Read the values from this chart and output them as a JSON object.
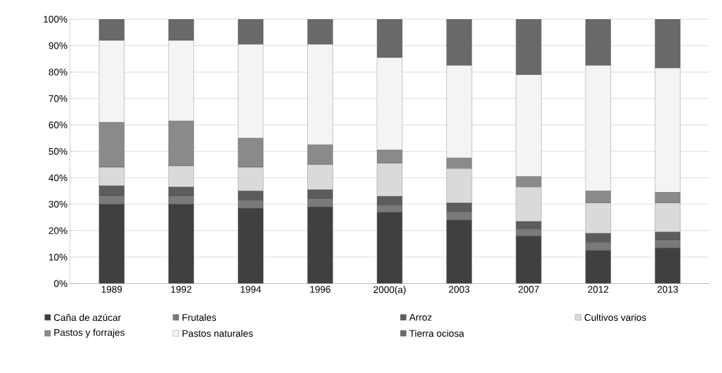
{
  "chart_data": {
    "type": "bar",
    "stacked": true,
    "categories": [
      "1989",
      "1992",
      "1994",
      "1996",
      "2000(a)",
      "2003",
      "2007",
      "2012",
      "2013"
    ],
    "series": [
      {
        "name": "Caña de azúcar",
        "color": "#404040",
        "values": [
          30,
          30,
          28.5,
          29,
          27,
          24,
          18,
          12.5,
          13.5
        ]
      },
      {
        "name": "Frutales",
        "color": "#7a7a7a",
        "values": [
          3,
          3,
          3,
          3,
          2.5,
          3,
          2.5,
          3,
          3
        ]
      },
      {
        "name": "Arroz",
        "color": "#5c5c5c",
        "values": [
          4,
          3.5,
          3.5,
          3.5,
          3.5,
          3.5,
          3,
          3.5,
          3
        ]
      },
      {
        "name": "Cultivos varios",
        "color": "#dadada",
        "values": [
          7,
          8,
          9,
          9.5,
          12.5,
          13,
          13,
          11.5,
          11
        ]
      },
      {
        "name": "Pastos y forrajes",
        "color": "#8a8a8a",
        "values": [
          17,
          17,
          11,
          7.5,
          5,
          4,
          4,
          4.5,
          4
        ]
      },
      {
        "name": "Pastos naturales",
        "color": "#f4f4f4",
        "values": [
          31,
          30.5,
          35.5,
          38,
          35,
          35,
          38.5,
          47.5,
          47
        ]
      },
      {
        "name": "Tierra ociosa",
        "color": "#696969",
        "values": [
          8,
          8,
          9.5,
          9.5,
          14.5,
          17.5,
          21,
          17.5,
          18.5
        ]
      }
    ],
    "ylim": [
      0,
      100
    ],
    "yticks": [
      {
        "value": 0,
        "label": "0%"
      },
      {
        "value": 10,
        "label": "10%"
      },
      {
        "value": 20,
        "label": "20%"
      },
      {
        "value": 30,
        "label": "30%"
      },
      {
        "value": 40,
        "label": "40%"
      },
      {
        "value": 50,
        "label": "50%"
      },
      {
        "value": 60,
        "label": "60%"
      },
      {
        "value": 70,
        "label": "70%"
      },
      {
        "value": 80,
        "label": "80%"
      },
      {
        "value": 90,
        "label": "90%"
      },
      {
        "value": 100,
        "label": "100%"
      }
    ],
    "grid": "y",
    "legend": "bottom"
  }
}
